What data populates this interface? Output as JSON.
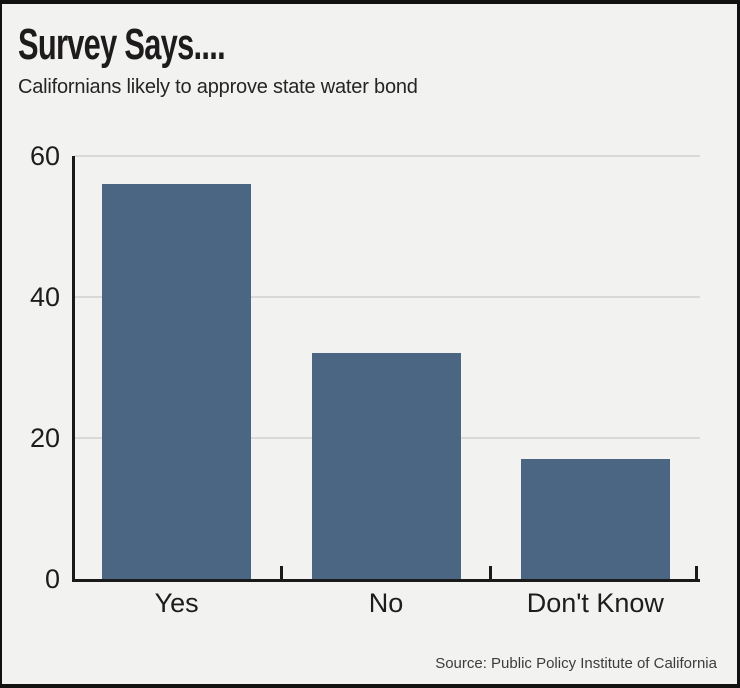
{
  "header": {
    "title": "Survey Says....",
    "subtitle": "Californians likely to approve state water bond"
  },
  "footer": {
    "source": "Source: Public Policy Institute of California"
  },
  "chart_data": {
    "type": "bar",
    "title": "Survey Says....",
    "subtitle": "Californians likely to approve state water bond",
    "categories": [
      "Yes",
      "No",
      "Don't Know"
    ],
    "values": [
      56,
      32,
      17
    ],
    "xlabel": "",
    "ylabel": "",
    "ylim": [
      0,
      60
    ],
    "yticks": [
      0,
      20,
      40,
      60
    ],
    "grid": "horizontal gridlines at 20, 40, 60",
    "legend_position": "none",
    "bar_color": "#4A6682",
    "background_color": "#F2F2F0",
    "gridline_color": "#D9D9D6",
    "axis_color": "#1A1A1A",
    "text_color": "#1D1D1D",
    "source": "Source: Public Policy Institute of California"
  }
}
